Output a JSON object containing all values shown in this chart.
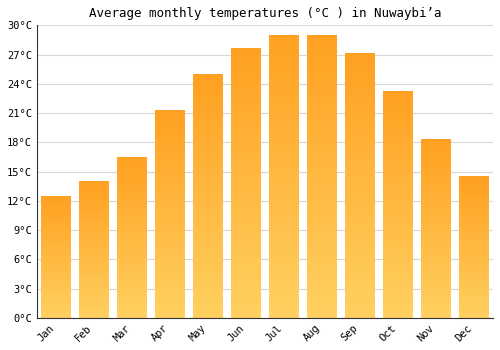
{
  "title": "Average monthly temperatures (°C ) in Nuwaybiʼa",
  "months": [
    "Jan",
    "Feb",
    "Mar",
    "Apr",
    "May",
    "Jun",
    "Jul",
    "Aug",
    "Sep",
    "Oct",
    "Nov",
    "Dec"
  ],
  "temperatures": [
    12.5,
    14.0,
    16.5,
    21.3,
    25.0,
    27.7,
    29.0,
    29.0,
    27.2,
    23.3,
    18.3,
    14.5
  ],
  "bar_color_bottom": "#FFD060",
  "bar_color_top": "#FFA020",
  "ylim": [
    0,
    30
  ],
  "yticks": [
    0,
    3,
    6,
    9,
    12,
    15,
    18,
    21,
    24,
    27,
    30
  ],
  "ytick_labels": [
    "0°C",
    "3°C",
    "6°C",
    "9°C",
    "12°C",
    "15°C",
    "18°C",
    "21°C",
    "24°C",
    "27°C",
    "30°C"
  ],
  "bg_color": "#ffffff",
  "grid_color": "#d8d8d8",
  "title_fontsize": 9,
  "tick_fontsize": 7.5,
  "bar_width": 0.8,
  "n_gradient_segments": 200
}
